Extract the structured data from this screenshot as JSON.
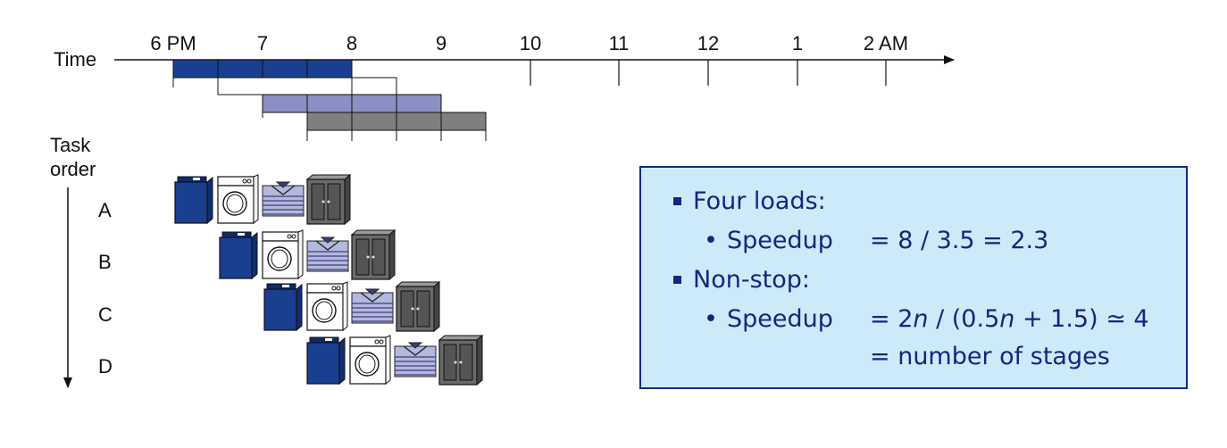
{
  "timeline": {
    "axis_label": "Time",
    "ticks": [
      "6 PM",
      "7",
      "8",
      "9",
      "10",
      "11",
      "12",
      "1",
      "2 AM"
    ],
    "task_order_label_line1": "Task",
    "task_order_label_line2": "order",
    "tasks": [
      "A",
      "B",
      "C",
      "D"
    ],
    "stage_colors": {
      "wash": "#1b3f8f",
      "dry": "#ffffff",
      "fold": "#8b8fc4",
      "store": "#7f7f7f"
    }
  },
  "icons": [
    "washer-icon",
    "dryer-icon",
    "folded-shirt-icon",
    "closet-icon"
  ],
  "info": {
    "item1": "Four loads:",
    "item1_sub_label": "Speedup",
    "item1_sub_value": "= 8 / 3.5 = 2.3",
    "item2": "Non-stop:",
    "item2_sub_label": "Speedup",
    "item2_sub_value_part1": "= 2",
    "item2_sub_value_n1": "n",
    "item2_sub_value_part2": " / (0.5",
    "item2_sub_value_n2": "n",
    "item2_sub_value_part3": " + 1.5) ≃ 4",
    "item2_sub_value_line2": "= number of stages"
  }
}
